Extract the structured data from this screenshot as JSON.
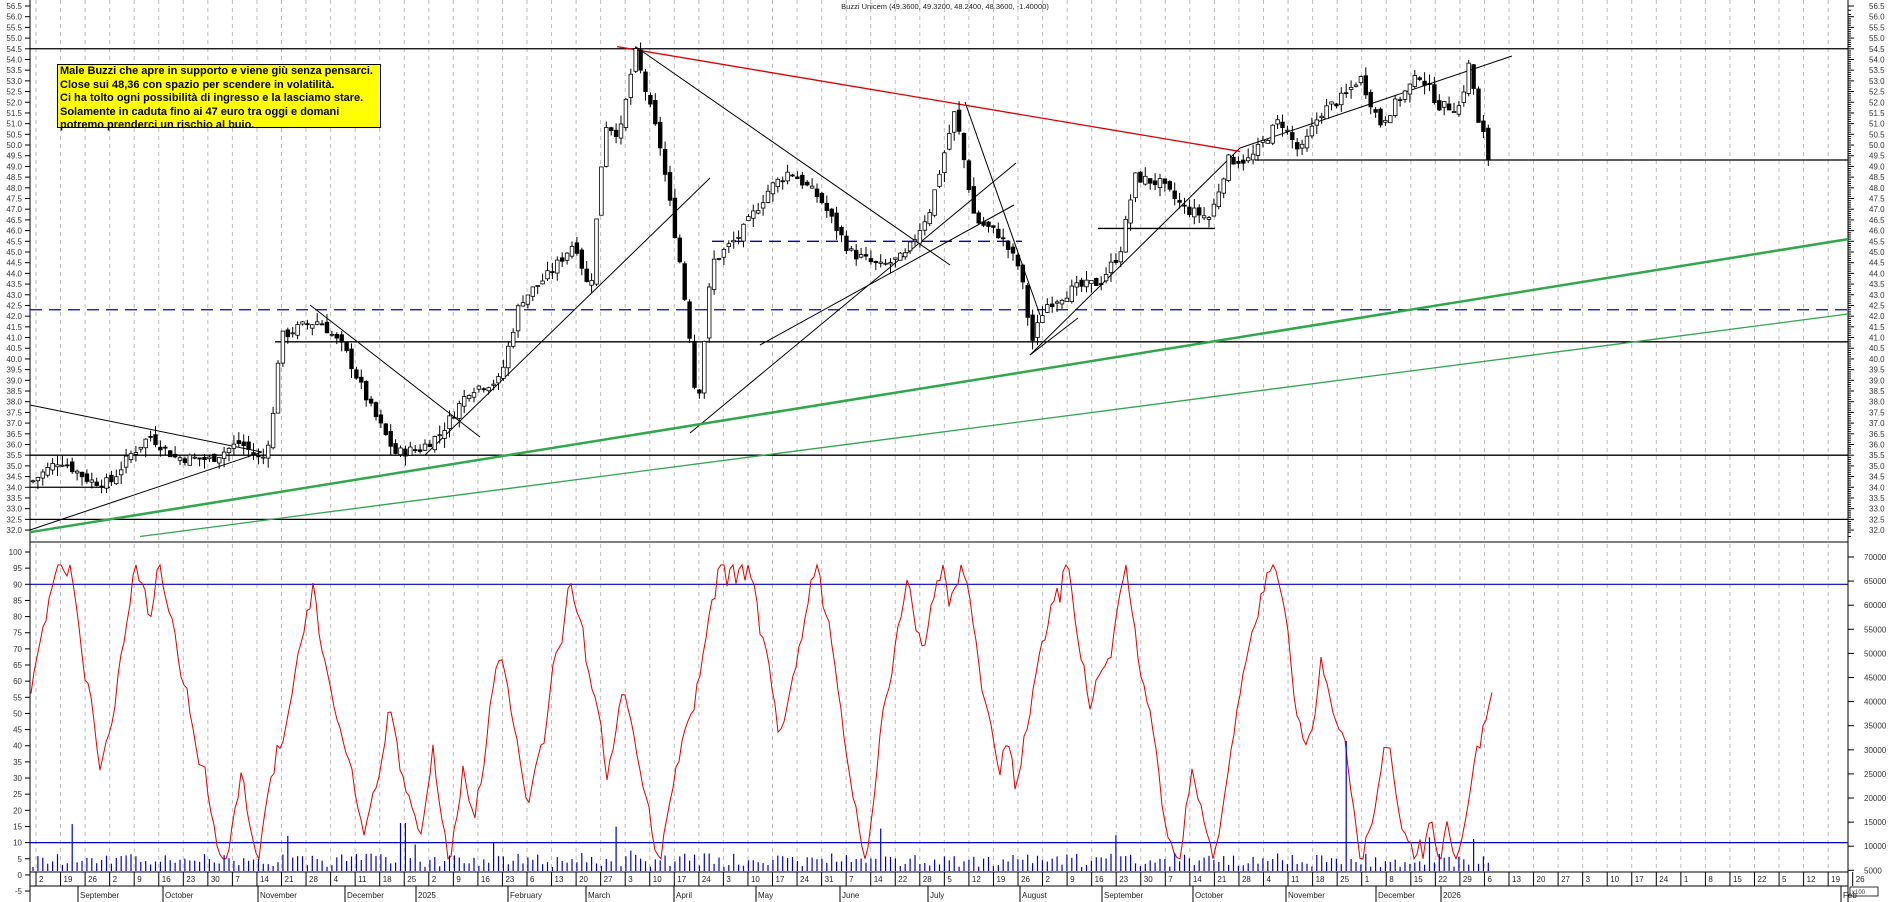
{
  "chart_data": {
    "type": "candlestick",
    "title": "Buzzi Unicem (49.3600, 49.3200, 48.2400, 48.3600, -1.40000)",
    "instrument": "Buzzi Unicem",
    "last_bar": {
      "open": 49.36,
      "high": 49.32,
      "low": 48.24,
      "close": 48.36,
      "change": -1.4
    },
    "price_axis": {
      "min": 32.0,
      "max": 56.5,
      "step": 0.5,
      "position": "right",
      "ticks": [
        "56.5",
        "56.0",
        "55.5",
        "55.0",
        "54.5",
        "54.0",
        "53.5",
        "53.0",
        "52.5",
        "52.0",
        "51.5",
        "51.0",
        "50.5",
        "50.0",
        "49.5",
        "49.0",
        "48.5",
        "48.0",
        "47.5",
        "47.0",
        "46.5",
        "46.0",
        "45.5",
        "45.0",
        "44.5",
        "44.0",
        "43.5",
        "43.0",
        "42.5",
        "42.0",
        "41.5",
        "41.0",
        "40.5",
        "40.0",
        "39.5",
        "39.0",
        "38.5",
        "38.0",
        "37.5",
        "37.0",
        "36.5",
        "36.0",
        "35.5",
        "35.0",
        "34.5",
        "34.0",
        "33.5",
        "33.0",
        "32.5",
        "32.0"
      ]
    },
    "oscillator_axis_left": {
      "min": -5,
      "max": 100,
      "ticks": [
        "100",
        "95",
        "90",
        "85",
        "80",
        "75",
        "70",
        "65",
        "60",
        "55",
        "50",
        "45",
        "40",
        "35",
        "30",
        "25",
        "20",
        "15",
        "10",
        "5",
        "0",
        "-5"
      ],
      "overbought": 90,
      "oversold": 10
    },
    "volume_axis_right": {
      "ticks": [
        "70000",
        "65000",
        "60000",
        "55000",
        "50000",
        "45000",
        "40000",
        "35000",
        "30000",
        "25000",
        "20000",
        "15000",
        "10000",
        "5000"
      ],
      "unit_label": "x100"
    },
    "x_axis": {
      "day_ticks": [
        "2",
        "19",
        "26",
        "2",
        "9",
        "16",
        "23",
        "30",
        "7",
        "14",
        "21",
        "28",
        "4",
        "11",
        "18",
        "25",
        "2",
        "9",
        "16",
        "23",
        "6",
        "13",
        "20",
        "27",
        "3",
        "10",
        "17",
        "24",
        "3",
        "10",
        "17",
        "24",
        "31",
        "7",
        "14",
        "22",
        "28",
        "5",
        "12",
        "19",
        "26",
        "2",
        "9",
        "16",
        "23",
        "30",
        "7",
        "14",
        "21",
        "28",
        "4",
        "11",
        "18",
        "25",
        "1",
        "8",
        "15",
        "22",
        "29",
        "6",
        "13",
        "20",
        "27",
        "3",
        "10",
        "17",
        "24",
        "1",
        "8",
        "15",
        "22",
        "5",
        "12",
        "19",
        "26",
        "2"
      ],
      "month_labels": [
        "September",
        "October",
        "November",
        "December",
        "2025",
        "February",
        "March",
        "April",
        "May",
        "June",
        "July",
        "August",
        "September",
        "October",
        "November",
        "December",
        "2026",
        "Feb"
      ]
    },
    "horizontal_levels": [
      {
        "price": 54.5,
        "color": "#000000",
        "style": "solid"
      },
      {
        "price": 49.3,
        "color": "#000000",
        "style": "solid",
        "from": "2025-11-10"
      },
      {
        "price": 46.1,
        "color": "#000000",
        "style": "solid",
        "from": "2025-09-01",
        "to": "2025-10-08"
      },
      {
        "price": 45.5,
        "color": "#0000cc",
        "style": "dashed",
        "from": "2025-04-28",
        "to": "2025-07-28"
      },
      {
        "price": 42.3,
        "color": "#0000cc",
        "style": "dashed"
      },
      {
        "price": 40.8,
        "color": "#000000",
        "style": "solid",
        "from": "2024-11-11"
      },
      {
        "price": 35.5,
        "color": "#000000",
        "style": "solid"
      },
      {
        "price": 34.0,
        "color": "#000000",
        "style": "solid",
        "to": "2024-09-10"
      },
      {
        "price": 32.5,
        "color": "#000000",
        "style": "solid"
      }
    ],
    "trendlines": [
      {
        "name": "red-resistance",
        "color": "#e00000",
        "from": [
          617,
          54.6
        ],
        "to": [
          1240,
          49.7
        ]
      },
      {
        "name": "green-support-thick",
        "color": "#2ea84a",
        "from": [
          30,
          31.9
        ],
        "to": [
          1848,
          45.6
        ]
      },
      {
        "name": "green-support-thin",
        "color": "#2ea84a",
        "from": [
          140,
          31.7
        ],
        "to": [
          1848,
          42.1
        ]
      }
    ],
    "oscillator": {
      "name": "stochastic",
      "color": "#e00000"
    },
    "volume": {
      "color": "#0000cc"
    }
  },
  "annotation": {
    "lines": [
      "Male Buzzi che apre in supporto e viene giù senza pensarci.",
      "Close sui 48,36 con spazio per scendere in volatilità.",
      "Ci ha tolto ogni possibilità di ingresso e la lasciamo stare.",
      "Solamente in caduta fino ai 47 euro tra oggi e domani",
      "potremo prenderci un rischio al buio."
    ]
  }
}
